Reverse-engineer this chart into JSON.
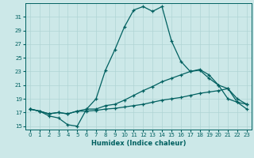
{
  "xlabel": "Humidex (Indice chaleur)",
  "ylabel": "",
  "bg_color": "#cce8e8",
  "grid_color": "#b0d4d4",
  "line_color": "#006060",
  "ylim": [
    14.5,
    33.0
  ],
  "xlim": [
    -0.5,
    23.5
  ],
  "yticks": [
    15,
    17,
    19,
    21,
    23,
    25,
    27,
    29,
    31
  ],
  "xticks": [
    0,
    1,
    2,
    3,
    4,
    5,
    6,
    7,
    8,
    9,
    10,
    11,
    12,
    13,
    14,
    15,
    16,
    17,
    18,
    19,
    20,
    21,
    22,
    23
  ],
  "line1_x": [
    0,
    1,
    2,
    3,
    4,
    5,
    6,
    7,
    8,
    9,
    10,
    11,
    12,
    13,
    14,
    15,
    16,
    17,
    18,
    19,
    20,
    21,
    22,
    23
  ],
  "line1_y": [
    17.5,
    17.2,
    16.5,
    16.2,
    15.2,
    15.0,
    17.5,
    19.0,
    23.2,
    26.2,
    29.5,
    32.0,
    32.5,
    31.8,
    32.5,
    27.5,
    24.5,
    23.0,
    23.2,
    22.0,
    21.0,
    19.0,
    18.5,
    17.5
  ],
  "line2_x": [
    0,
    1,
    2,
    3,
    4,
    5,
    6,
    7,
    8,
    9,
    10,
    11,
    12,
    13,
    14,
    15,
    16,
    17,
    18,
    19,
    20,
    21,
    22,
    23
  ],
  "line2_y": [
    17.5,
    17.2,
    16.8,
    17.0,
    16.8,
    17.2,
    17.5,
    17.5,
    18.0,
    18.2,
    18.8,
    19.5,
    20.2,
    20.8,
    21.5,
    22.0,
    22.5,
    23.0,
    23.3,
    22.5,
    21.0,
    20.5,
    19.0,
    18.2
  ],
  "line3_x": [
    0,
    1,
    2,
    3,
    4,
    5,
    6,
    7,
    8,
    9,
    10,
    11,
    12,
    13,
    14,
    15,
    16,
    17,
    18,
    19,
    20,
    21,
    22,
    23
  ],
  "line3_y": [
    17.5,
    17.2,
    16.8,
    17.0,
    16.8,
    17.2,
    17.2,
    17.3,
    17.5,
    17.6,
    17.8,
    18.0,
    18.2,
    18.5,
    18.8,
    19.0,
    19.2,
    19.5,
    19.8,
    20.0,
    20.2,
    20.5,
    18.5,
    18.2
  ]
}
